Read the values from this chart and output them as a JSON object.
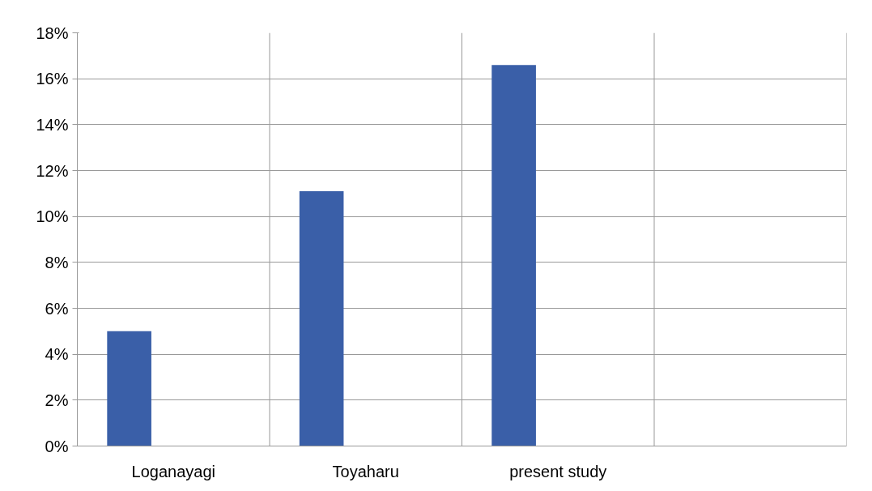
{
  "chart_data": {
    "type": "bar",
    "categories": [
      "Loganayagi",
      "Toyaharu",
      "present study",
      null
    ],
    "values": [
      5,
      11.1,
      16.6,
      null
    ],
    "color": "#3a5fa8",
    "ylim": [
      0,
      18
    ],
    "yticks": [
      {
        "value": 0,
        "label": "0%"
      },
      {
        "value": 2,
        "label": "2%"
      },
      {
        "value": 4,
        "label": "4%"
      },
      {
        "value": 6,
        "label": "6%"
      },
      {
        "value": 8,
        "label": "8%"
      },
      {
        "value": 10,
        "label": "10%"
      },
      {
        "value": 12,
        "label": "12%"
      },
      {
        "value": 14,
        "label": "14%"
      },
      {
        "value": 16,
        "label": "16%"
      },
      {
        "value": 18,
        "label": "18%"
      }
    ],
    "grid": "y"
  }
}
